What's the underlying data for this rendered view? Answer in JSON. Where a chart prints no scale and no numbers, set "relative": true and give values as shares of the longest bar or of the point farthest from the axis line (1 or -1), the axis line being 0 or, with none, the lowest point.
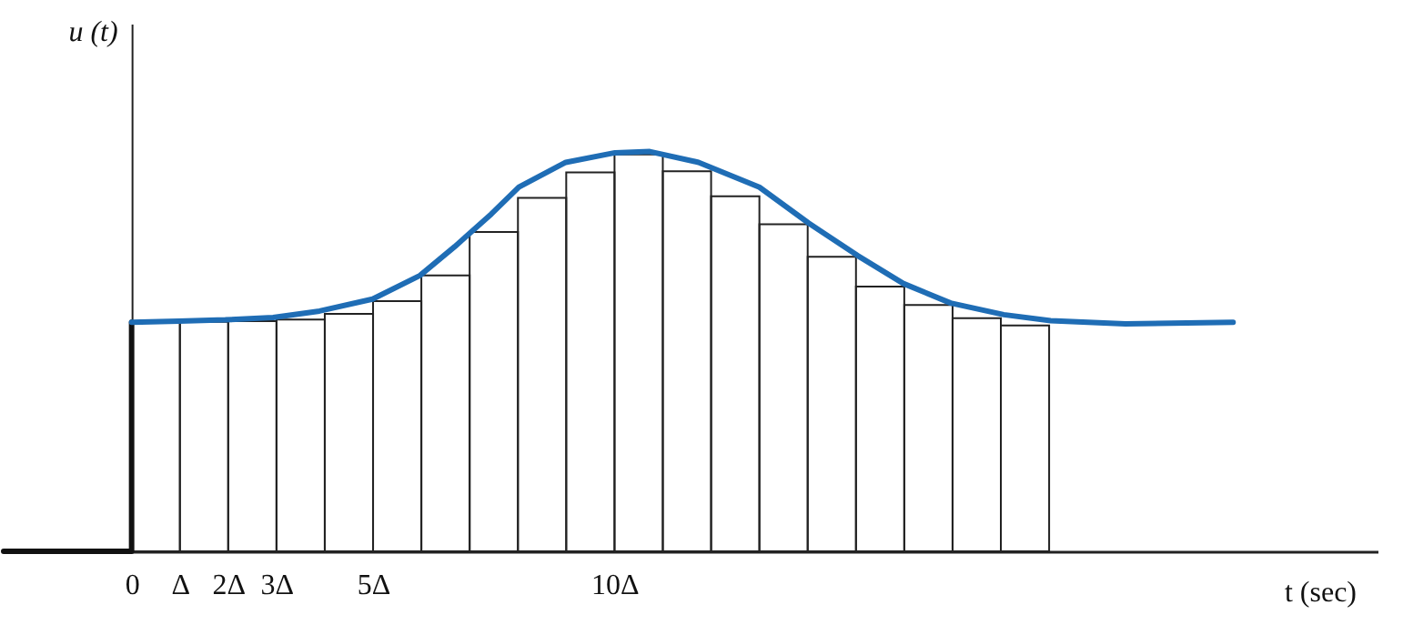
{
  "chart_data": {
    "type": "histogram",
    "relative": true,
    "xlabel": "t (sec)",
    "ylabel": "u (t)",
    "xlim": [
      -2.65,
      25.8
    ],
    "xticks": [
      0,
      {
        "value": 1,
        "label": "Δ"
      },
      {
        "value": 2,
        "label": "2Δ"
      },
      {
        "value": 3,
        "label": "3Δ"
      },
      {
        "value": 5,
        "label": "5Δ"
      },
      {
        "value": 10,
        "label": "10Δ"
      }
    ],
    "series": [
      {
        "color": "#222222",
        "bins": [
          0,
          1,
          2,
          3,
          4,
          5,
          6,
          7,
          8,
          9,
          10,
          11,
          12,
          13,
          14,
          15,
          16,
          17,
          18,
          19
        ],
        "values": [
          0.573,
          0.574,
          0.576,
          0.58,
          0.594,
          0.626,
          0.69,
          0.799,
          0.884,
          0.948,
          0.993,
          0.951,
          0.888,
          0.818,
          0.737,
          0.662,
          0.616,
          0.583,
          0.565
        ]
      },
      {
        "type": "line",
        "color": "#111111",
        "x": [
          -2.65,
          0,
          0
        ],
        "values": [
          0,
          0,
          0.573
        ]
      },
      {
        "type": "line",
        "color": "#1f6db5",
        "x": [
          0,
          0.98,
          1.94,
          2.93,
          3.89,
          4.99,
          5.97,
          6.69,
          7.45,
          8.02,
          8.99,
          10.01,
          10.73,
          11.74,
          13.0,
          14.02,
          15.03,
          15.98,
          16.96,
          18.06,
          19.03,
          20.58,
          22.81
        ],
        "values": [
          0.573,
          0.576,
          0.579,
          0.585,
          0.601,
          0.631,
          0.69,
          0.762,
          0.844,
          0.911,
          0.973,
          0.997,
          1.0,
          0.973,
          0.911,
          0.821,
          0.74,
          0.67,
          0.621,
          0.592,
          0.577,
          0.569,
          0.573
        ]
      }
    ]
  }
}
